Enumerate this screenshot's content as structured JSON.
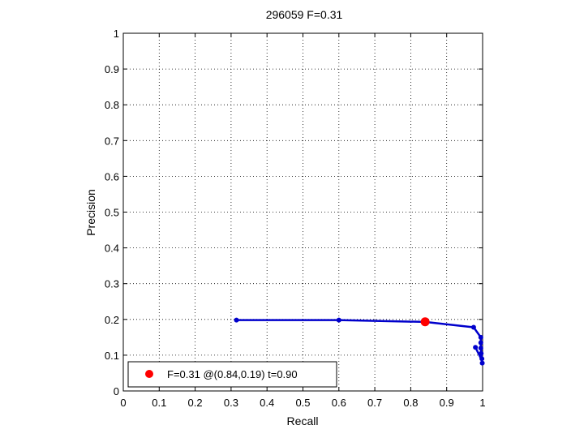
{
  "chart_data": {
    "type": "line",
    "title": "296059 F=0.31",
    "xlabel": "Recall",
    "ylabel": "Precision",
    "xlim": [
      0,
      1
    ],
    "ylim": [
      0,
      1
    ],
    "xticks": [
      "0",
      "0.1",
      "0.2",
      "0.3",
      "0.4",
      "0.5",
      "0.6",
      "0.7",
      "0.8",
      "0.9",
      "1"
    ],
    "yticks": [
      "0",
      "0.1",
      "0.2",
      "0.3",
      "0.4",
      "0.5",
      "0.6",
      "0.7",
      "0.8",
      "0.9",
      "1"
    ],
    "grid": true,
    "legend_position": "bottom-left",
    "series": [
      {
        "color": "#0000cc",
        "points": [
          [
            0.315,
            0.198
          ],
          [
            0.6,
            0.198
          ],
          [
            0.84,
            0.193
          ],
          [
            0.975,
            0.178
          ],
          [
            0.995,
            0.15
          ],
          [
            0.995,
            0.135
          ],
          [
            0.995,
            0.12
          ],
          [
            0.996,
            0.11
          ],
          [
            0.997,
            0.1
          ],
          [
            0.998,
            0.09
          ],
          [
            0.998,
            0.082
          ],
          [
            0.999,
            0.075
          ],
          [
            0.999,
            0.08
          ],
          [
            0.998,
            0.085
          ],
          [
            0.98,
            0.122
          ]
        ],
        "marker_points": [
          [
            0.315,
            0.198
          ],
          [
            0.6,
            0.198
          ],
          [
            0.975,
            0.178
          ],
          [
            0.995,
            0.15
          ],
          [
            0.995,
            0.135
          ],
          [
            0.995,
            0.12
          ],
          [
            0.996,
            0.105
          ],
          [
            0.998,
            0.09
          ],
          [
            0.999,
            0.078
          ],
          [
            0.98,
            0.122
          ]
        ]
      }
    ],
    "best_point": {
      "recall": 0.84,
      "precision": 0.19,
      "color": "#ff0000",
      "legend": "F=0.31 @(0.84,0.19) t=0.90"
    }
  }
}
